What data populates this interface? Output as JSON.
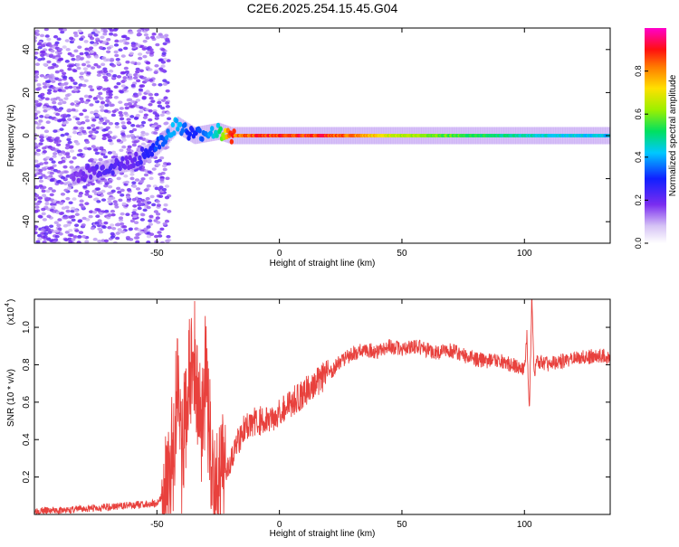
{
  "title": "C2E6.2025.254.15.45.G04",
  "chart_data": [
    {
      "type": "heatmap",
      "xlabel": "Height of straight line (km)",
      "ylabel": "Frequency (Hz)",
      "xlim": [
        -100,
        135
      ],
      "ylim": [
        -50,
        50
      ],
      "xticks": [
        -50,
        0,
        50,
        100
      ],
      "yticks": [
        -40,
        -20,
        0,
        20,
        40
      ],
      "colorbar": {
        "label": "Normalized spectral amplitude",
        "range": [
          0.0,
          1.0
        ],
        "ticks": [
          "0.0",
          "0.2",
          "0.4",
          "0.6",
          "0.8"
        ]
      },
      "ridge": {
        "description_values": "dominant frequency track",
        "x": [
          -80,
          -70,
          -60,
          -50,
          -42,
          -35,
          -25,
          -20,
          0,
          20,
          50,
          100,
          135
        ],
        "y": [
          -18,
          -15,
          -12,
          -5,
          5,
          0,
          2,
          0,
          0,
          0,
          0,
          0,
          0
        ],
        "amplitude": [
          0.2,
          0.25,
          0.2,
          0.35,
          0.45,
          0.3,
          0.5,
          0.9,
          0.95,
          0.95,
          0.7,
          0.5,
          0.45
        ]
      }
    },
    {
      "type": "line",
      "xlabel": "Height of straight line (km)",
      "ylabel": "SNR (10 * v/v)",
      "y_scale_label": "(x10",
      "y_scale_exp": "4",
      "xlim": [
        -100,
        135
      ],
      "ylim": [
        0,
        1.15
      ],
      "xticks": [
        -50,
        0,
        50,
        100
      ],
      "yticks": [
        "0.2",
        "0.4",
        "0.6",
        "0.8",
        "1.0"
      ],
      "series": [
        {
          "color": "#e8413d",
          "x": [
            -100,
            -90,
            -80,
            -70,
            -60,
            -50,
            -45,
            -43,
            -41,
            -40,
            -38,
            -35,
            -32,
            -30,
            -28,
            -25,
            -22,
            -20,
            -15,
            -10,
            -5,
            0,
            5,
            10,
            15,
            20,
            25,
            30,
            35,
            40,
            45,
            50,
            55,
            60,
            65,
            70,
            75,
            80,
            85,
            90,
            95,
            100,
            101,
            102,
            103,
            104,
            105,
            110,
            115,
            120,
            125,
            130,
            135
          ],
          "values": [
            0.02,
            0.02,
            0.03,
            0.04,
            0.05,
            0.06,
            0.15,
            0.4,
            0.9,
            0.2,
            0.6,
            0.85,
            0.5,
            0.75,
            0.3,
            0.1,
            0.25,
            0.3,
            0.45,
            0.5,
            0.5,
            0.55,
            0.6,
            0.65,
            0.7,
            0.75,
            0.82,
            0.86,
            0.88,
            0.87,
            0.9,
            0.88,
            0.9,
            0.88,
            0.86,
            0.88,
            0.85,
            0.83,
            0.82,
            0.82,
            0.8,
            0.78,
            0.95,
            0.55,
            1.15,
            0.75,
            0.82,
            0.8,
            0.82,
            0.83,
            0.84,
            0.85,
            0.84
          ]
        }
      ]
    }
  ]
}
